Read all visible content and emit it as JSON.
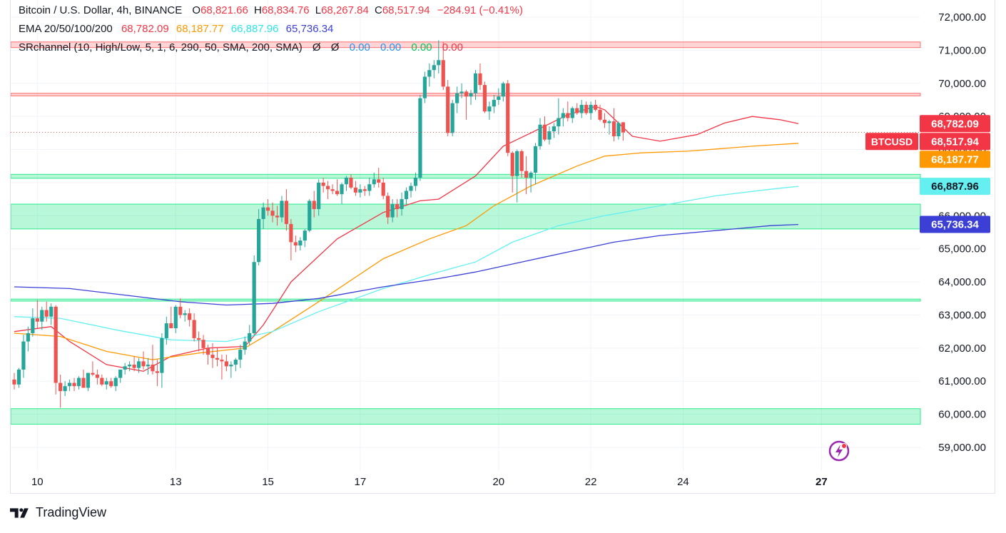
{
  "header": {
    "symbol": "Bitcoin / U.S. Dollar, 4h, BINANCE",
    "o_label": "O",
    "o": "68,821.66",
    "h_label": "H",
    "h": "68,834.76",
    "l_label": "L",
    "l": "68,267.84",
    "c_label": "C",
    "c": "68,517.94",
    "change": "−284.91 (−0.41%)"
  },
  "ema_legend": {
    "label": "EMA 20/50/100/200",
    "v20": "68,782.09",
    "v50": "68,187.77",
    "v100": "66,887.96",
    "v200": "65,736.34"
  },
  "sr_legend": {
    "label": "SRchannel (10, High/Low, 5, 1, 6, 290, 50, SMA, 200, SMA)",
    "sym1": "Ø",
    "sym2": "Ø",
    "v1": "0.00",
    "v2": "0.00",
    "v3": "0.00",
    "v4": "0.00"
  },
  "footer": {
    "brand": "TradingView"
  },
  "colors": {
    "up": "#26a69a",
    "down": "#ef5350",
    "ema20": "#f23645",
    "ema50": "#ff9800",
    "ema100": "#64f0f0",
    "ema200": "#3b3fd6",
    "green_zone": "#00e676",
    "red_zone": "#ff5252"
  },
  "chart_data": {
    "type": "candlestick",
    "ylim": [
      58500,
      72500
    ],
    "y_ticks": [
      "59,000.00",
      "60,000.00",
      "61,000.00",
      "62,000.00",
      "63,000.00",
      "64,000.00",
      "65,000.00",
      "66,000.00",
      "67,000.00",
      "68,000.00",
      "69,000.00",
      "70,000.00",
      "71,000.00",
      "72,000.00"
    ],
    "x_labels": [
      {
        "label": "10",
        "index": 5,
        "bold": false
      },
      {
        "label": "13",
        "index": 35,
        "bold": false
      },
      {
        "label": "15",
        "index": 55,
        "bold": false
      },
      {
        "label": "17",
        "index": 75,
        "bold": false
      },
      {
        "label": "20",
        "index": 105,
        "bold": false
      },
      {
        "label": "22",
        "index": 125,
        "bold": false
      },
      {
        "label": "24",
        "index": 145,
        "bold": false
      },
      {
        "label": "27",
        "index": 175,
        "bold": true
      }
    ],
    "price_labels": [
      {
        "text": "68,782.09",
        "value": 68782.09,
        "color": "#f23645",
        "text_color": "#ffffff"
      },
      {
        "text": "68,517.94",
        "value": 68517.94,
        "color": "#f23645",
        "text_color": "#ffffff",
        "tag": "BTCUSD"
      },
      {
        "text": "68,187.77",
        "value": 68187.77,
        "color": "#ff9800",
        "text_color": "#ffffff"
      },
      {
        "text": "66,887.96",
        "value": 66887.96,
        "color": "#64f0f0",
        "text_color": "#131722"
      },
      {
        "text": "65,736.34",
        "value": 65736.34,
        "color": "#3b3fd6",
        "text_color": "#ffffff"
      }
    ],
    "zones": [
      {
        "low": 71080,
        "high": 71250,
        "type": "resistance"
      },
      {
        "low": 69620,
        "high": 69700,
        "type": "resistance"
      },
      {
        "low": 67130,
        "high": 67250,
        "type": "support"
      },
      {
        "low": 65600,
        "high": 66350,
        "type": "support"
      },
      {
        "low": 63420,
        "high": 63480,
        "type": "support"
      },
      {
        "low": 59700,
        "high": 60170,
        "type": "support"
      }
    ],
    "candles": [
      [
        61050,
        61250,
        60750,
        60900
      ],
      [
        60900,
        61400,
        60800,
        61350
      ],
      [
        61350,
        62400,
        61100,
        62200
      ],
      [
        62200,
        62650,
        61900,
        62450
      ],
      [
        62450,
        63200,
        62350,
        62900
      ],
      [
        62900,
        63450,
        62600,
        62800
      ],
      [
        62800,
        63250,
        62550,
        63150
      ],
      [
        63150,
        63400,
        62800,
        62950
      ],
      [
        62950,
        63350,
        62700,
        63250
      ],
      [
        63250,
        63300,
        60600,
        60950
      ],
      [
        60950,
        61200,
        60200,
        60700
      ],
      [
        60700,
        61000,
        60550,
        60850
      ],
      [
        60850,
        61050,
        60700,
        60950
      ],
      [
        60950,
        61100,
        60700,
        60850
      ],
      [
        60850,
        61150,
        60750,
        61100
      ],
      [
        61100,
        61350,
        60800,
        60800
      ],
      [
        60800,
        61250,
        60700,
        61250
      ],
      [
        61250,
        61600,
        61150,
        61200
      ],
      [
        61200,
        61350,
        60900,
        61100
      ],
      [
        61100,
        61200,
        60850,
        60900
      ],
      [
        60900,
        61100,
        60750,
        61000
      ],
      [
        61000,
        61100,
        60800,
        60850
      ],
      [
        60850,
        61150,
        60700,
        61100
      ],
      [
        61100,
        61350,
        60950,
        61350
      ],
      [
        61350,
        61550,
        61200,
        61450
      ],
      [
        61450,
        61600,
        61300,
        61500
      ],
      [
        61500,
        61750,
        61300,
        61400
      ],
      [
        61400,
        61700,
        61250,
        61600
      ],
      [
        61600,
        61900,
        61350,
        61450
      ],
      [
        61450,
        61700,
        61200,
        61500
      ],
      [
        61500,
        62100,
        61200,
        61300
      ],
      [
        61300,
        61650,
        60850,
        61250
      ],
      [
        61250,
        62450,
        60800,
        62300
      ],
      [
        62300,
        62950,
        62100,
        62750
      ],
      [
        62750,
        63250,
        62600,
        62600
      ],
      [
        62600,
        63300,
        62450,
        63250
      ],
      [
        63250,
        63500,
        62900,
        63000
      ],
      [
        63000,
        63150,
        62800,
        63050
      ],
      [
        63050,
        63200,
        62650,
        62850
      ],
      [
        62850,
        63050,
        62200,
        62300
      ],
      [
        62300,
        62500,
        61900,
        62250
      ],
      [
        62250,
        62400,
        61800,
        62000
      ],
      [
        62000,
        62100,
        61500,
        61800
      ],
      [
        61800,
        62150,
        61400,
        61700
      ],
      [
        61700,
        62000,
        61450,
        61650
      ],
      [
        61650,
        61800,
        61050,
        61600
      ],
      [
        61600,
        61800,
        61300,
        61450
      ],
      [
        61450,
        61600,
        61100,
        61500
      ],
      [
        61500,
        61700,
        61300,
        61650
      ],
      [
        61650,
        62100,
        61400,
        61950
      ],
      [
        61950,
        62350,
        61800,
        62200
      ],
      [
        62200,
        62700,
        62100,
        62450
      ],
      [
        62450,
        64800,
        62350,
        64600
      ],
      [
        64600,
        66200,
        64500,
        65900
      ],
      [
        65900,
        66400,
        65600,
        66250
      ],
      [
        66250,
        66500,
        66000,
        66150
      ],
      [
        66150,
        66400,
        65800,
        66000
      ],
      [
        66000,
        66300,
        65700,
        65950
      ],
      [
        65950,
        66600,
        65800,
        66450
      ],
      [
        66450,
        66800,
        65550,
        65750
      ],
      [
        65750,
        65900,
        64650,
        65200
      ],
      [
        65200,
        65400,
        64900,
        65100
      ],
      [
        65100,
        65350,
        64950,
        65250
      ],
      [
        65250,
        65600,
        65050,
        65550
      ],
      [
        65550,
        66500,
        65500,
        66450
      ],
      [
        66450,
        66750,
        65950,
        66200
      ],
      [
        66200,
        67100,
        66000,
        67000
      ],
      [
        67000,
        67150,
        66700,
        66900
      ],
      [
        66900,
        67050,
        66500,
        66800
      ],
      [
        66800,
        66950,
        66650,
        66750
      ],
      [
        66750,
        67100,
        66600,
        66650
      ],
      [
        66650,
        67000,
        66350,
        66950
      ],
      [
        66950,
        67200,
        66750,
        67150
      ],
      [
        67150,
        67250,
        66800,
        66850
      ],
      [
        66850,
        67050,
        66600,
        66700
      ],
      [
        66700,
        66950,
        66550,
        66800
      ],
      [
        66800,
        66900,
        66600,
        66750
      ],
      [
        66750,
        67150,
        66600,
        66950
      ],
      [
        66950,
        67300,
        66850,
        67100
      ],
      [
        67100,
        67450,
        66850,
        67000
      ],
      [
        67000,
        67150,
        66500,
        66600
      ],
      [
        66600,
        66700,
        65750,
        65950
      ],
      [
        65950,
        66500,
        65800,
        66350
      ],
      [
        66350,
        66500,
        65950,
        66200
      ],
      [
        66200,
        66700,
        66000,
        66500
      ],
      [
        66500,
        66850,
        66350,
        66750
      ],
      [
        66750,
        67000,
        66550,
        66900
      ],
      [
        66900,
        67300,
        66750,
        67150
      ],
      [
        67150,
        69650,
        67050,
        69550
      ],
      [
        69550,
        70350,
        69400,
        70200
      ],
      [
        70200,
        70600,
        69900,
        70400
      ],
      [
        70400,
        70700,
        70150,
        70550
      ],
      [
        70550,
        71300,
        70300,
        70700
      ],
      [
        70700,
        71250,
        69800,
        69900
      ],
      [
        69900,
        70100,
        68400,
        68500
      ],
      [
        68500,
        69500,
        68400,
        69400
      ],
      [
        69400,
        69900,
        69100,
        69700
      ],
      [
        69700,
        70000,
        69550,
        69750
      ],
      [
        69750,
        69800,
        68900,
        69600
      ],
      [
        69600,
        69800,
        69350,
        69700
      ],
      [
        69700,
        70400,
        69500,
        70300
      ],
      [
        70300,
        70600,
        69800,
        69950
      ],
      [
        69950,
        70050,
        69100,
        69150
      ],
      [
        69150,
        69450,
        68900,
        69300
      ],
      [
        69300,
        69650,
        69100,
        69500
      ],
      [
        69500,
        69850,
        69350,
        69600
      ],
      [
        69600,
        70050,
        69450,
        70000
      ],
      [
        70000,
        70100,
        67800,
        67900
      ],
      [
        67900,
        67950,
        66700,
        67200
      ],
      [
        67200,
        68000,
        66400,
        67950
      ],
      [
        67950,
        68000,
        67150,
        67350
      ],
      [
        67350,
        67800,
        66650,
        67150
      ],
      [
        67150,
        67350,
        66700,
        67300
      ],
      [
        67300,
        68200,
        66950,
        68100
      ],
      [
        68100,
        68950,
        68000,
        68750
      ],
      [
        68750,
        69000,
        68250,
        68300
      ],
      [
        68300,
        68700,
        68150,
        68550
      ],
      [
        68550,
        68800,
        68350,
        68700
      ],
      [
        68700,
        69550,
        68450,
        68950
      ],
      [
        68950,
        69250,
        68700,
        69100
      ],
      [
        69100,
        69450,
        68850,
        68950
      ],
      [
        68950,
        69300,
        68800,
        69250
      ],
      [
        69250,
        69400,
        69050,
        69100
      ],
      [
        69100,
        69500,
        68950,
        69350
      ],
      [
        69350,
        69450,
        69050,
        69100
      ],
      [
        69100,
        69450,
        68900,
        69350
      ],
      [
        69350,
        69500,
        69150,
        69200
      ],
      [
        69200,
        69350,
        68850,
        68900
      ],
      [
        68900,
        69100,
        68650,
        68800
      ],
      [
        68800,
        68900,
        68450,
        68850
      ],
      [
        68850,
        69250,
        68250,
        68400
      ],
      [
        68400,
        68850,
        68300,
        68800
      ],
      [
        68821.66,
        68834.76,
        68267.84,
        68517.94
      ]
    ],
    "ema_series": [
      {
        "period": 20,
        "points": [
          [
            0,
            62500
          ],
          [
            8,
            62650
          ],
          [
            12,
            62200
          ],
          [
            20,
            61500
          ],
          [
            28,
            61300
          ],
          [
            34,
            61750
          ],
          [
            42,
            62000
          ],
          [
            50,
            62050
          ],
          [
            54,
            62700
          ],
          [
            60,
            64000
          ],
          [
            70,
            65300
          ],
          [
            80,
            66100
          ],
          [
            88,
            66450
          ],
          [
            92,
            66500
          ],
          [
            100,
            67200
          ],
          [
            106,
            68100
          ],
          [
            112,
            68500
          ],
          [
            120,
            69050
          ],
          [
            126,
            69300
          ],
          [
            128,
            69200
          ],
          [
            134,
            68400
          ],
          [
            140,
            68250
          ],
          [
            148,
            68450
          ],
          [
            154,
            68800
          ],
          [
            160,
            69000
          ],
          [
            166,
            68900
          ],
          [
            170,
            68782
          ]
        ]
      },
      {
        "period": 50,
        "points": [
          [
            0,
            62450
          ],
          [
            10,
            62350
          ],
          [
            20,
            61900
          ],
          [
            30,
            61650
          ],
          [
            40,
            61850
          ],
          [
            50,
            62000
          ],
          [
            56,
            62500
          ],
          [
            66,
            63400
          ],
          [
            80,
            64700
          ],
          [
            90,
            65300
          ],
          [
            98,
            65700
          ],
          [
            104,
            66300
          ],
          [
            112,
            66900
          ],
          [
            122,
            67500
          ],
          [
            128,
            67800
          ],
          [
            136,
            67900
          ],
          [
            146,
            67950
          ],
          [
            160,
            68100
          ],
          [
            170,
            68188
          ]
        ]
      },
      {
        "period": 100,
        "points": [
          [
            0,
            62950
          ],
          [
            10,
            62900
          ],
          [
            22,
            62550
          ],
          [
            34,
            62250
          ],
          [
            46,
            62200
          ],
          [
            56,
            62500
          ],
          [
            66,
            63100
          ],
          [
            80,
            63800
          ],
          [
            92,
            64300
          ],
          [
            100,
            64600
          ],
          [
            108,
            65200
          ],
          [
            118,
            65700
          ],
          [
            128,
            66000
          ],
          [
            140,
            66300
          ],
          [
            152,
            66600
          ],
          [
            164,
            66800
          ],
          [
            170,
            66888
          ]
        ]
      },
      {
        "period": 200,
        "points": [
          [
            0,
            63850
          ],
          [
            12,
            63800
          ],
          [
            24,
            63600
          ],
          [
            36,
            63400
          ],
          [
            46,
            63300
          ],
          [
            56,
            63350
          ],
          [
            66,
            63500
          ],
          [
            80,
            63850
          ],
          [
            92,
            64100
          ],
          [
            100,
            64300
          ],
          [
            110,
            64600
          ],
          [
            120,
            64900
          ],
          [
            130,
            65200
          ],
          [
            140,
            65400
          ],
          [
            152,
            65550
          ],
          [
            164,
            65700
          ],
          [
            170,
            65736
          ]
        ]
      }
    ]
  }
}
